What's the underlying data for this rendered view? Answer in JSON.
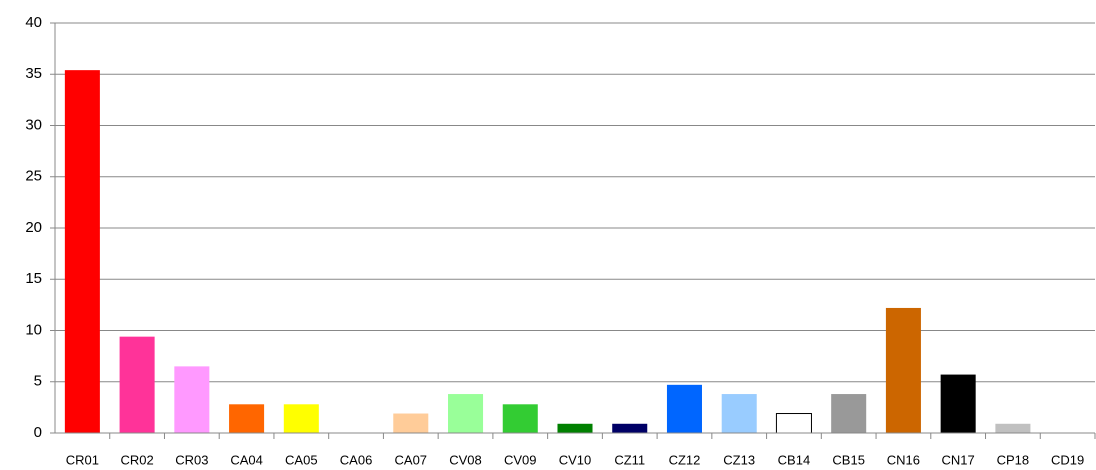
{
  "chart_data": {
    "type": "bar",
    "categories": [
      "CR01",
      "CR02",
      "CR03",
      "CA04",
      "CA05",
      "CA06",
      "CA07",
      "CV08",
      "CV09",
      "CV10",
      "CZ11",
      "CZ12",
      "CZ13",
      "CB14",
      "CB15",
      "CN16",
      "CN17",
      "CP18",
      "CD19"
    ],
    "values": [
      35.4,
      9.4,
      6.5,
      2.8,
      2.8,
      0,
      1.9,
      3.8,
      2.8,
      0.9,
      0.9,
      4.7,
      3.8,
      1.9,
      3.8,
      12.2,
      5.7,
      0.9,
      0
    ],
    "colors": [
      "#ff0000",
      "#ff3399",
      "#ff99ff",
      "#ff6600",
      "#ffff00",
      "#ffffff",
      "#ffcc99",
      "#99ff99",
      "#33cc33",
      "#008000",
      "#000066",
      "#0066ff",
      "#99ccff",
      "#ffffff",
      "#999999",
      "#cc6600",
      "#000000",
      "#c0c0c0",
      "#ffffff"
    ],
    "ylim": [
      0,
      40
    ],
    "yticks": [
      0,
      5,
      10,
      15,
      20,
      25,
      30,
      35,
      40
    ],
    "grid": true
  }
}
